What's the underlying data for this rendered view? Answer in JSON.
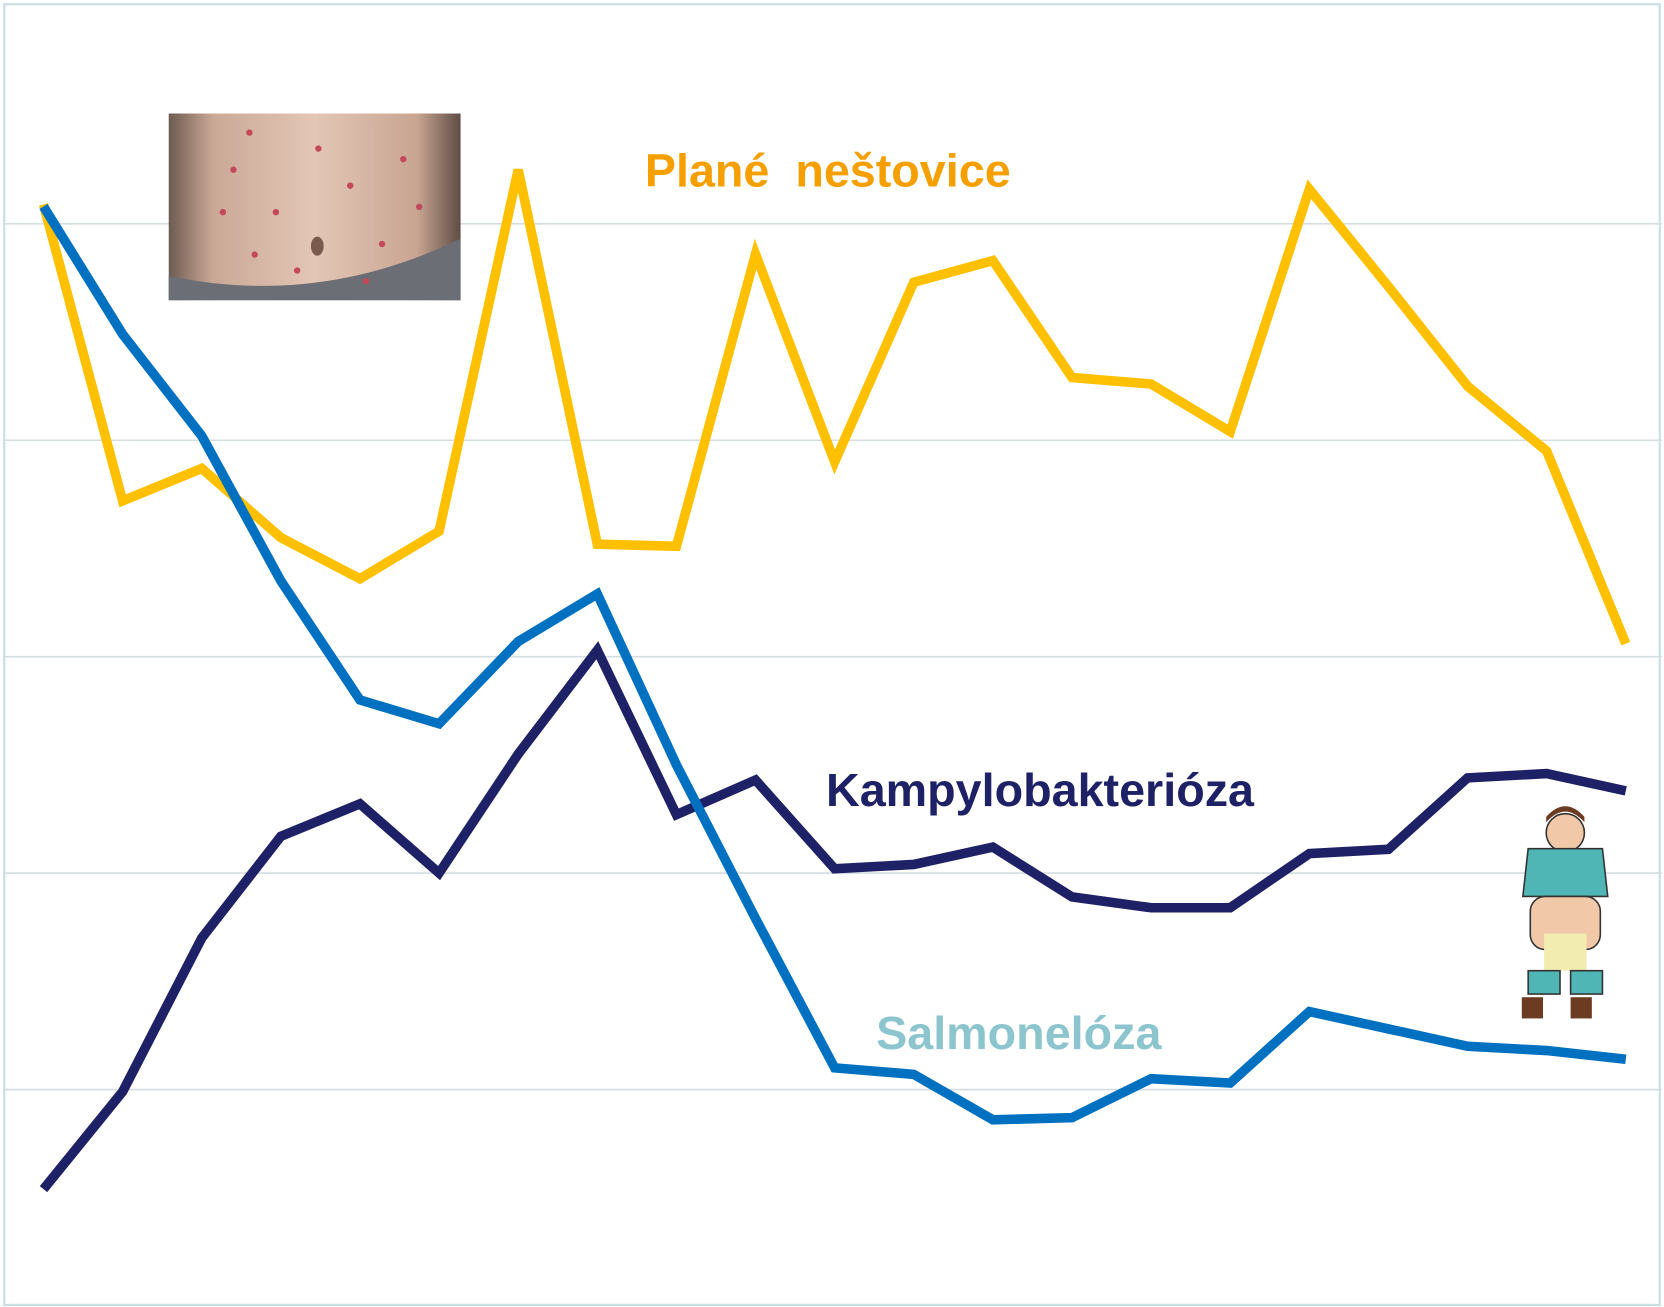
{
  "chart_data": {
    "type": "line",
    "categories": [
      null,
      null,
      null,
      null,
      null,
      null,
      null,
      null,
      null,
      null,
      null,
      null,
      null,
      null,
      null,
      null,
      null,
      null,
      null,
      null,
      null
    ],
    "series": [
      {
        "name": "Plané  neštovice",
        "color": "#ffc000",
        "label_color": "#f5a000",
        "values": [
          5.09,
          3.72,
          3.87,
          3.55,
          3.36,
          3.58,
          5.25,
          3.52,
          3.51,
          4.86,
          3.9,
          4.73,
          4.83,
          4.29,
          4.26,
          4.04,
          5.16,
          4.71,
          4.25,
          3.95,
          3.06
        ]
      },
      {
        "name": "Kampylobakterióza",
        "color": "#1f2166",
        "label_color": "#1f2166",
        "values": [
          0.54,
          0.99,
          1.7,
          2.17,
          2.32,
          2.0,
          2.55,
          3.03,
          2.27,
          2.43,
          2.02,
          2.04,
          2.12,
          1.89,
          1.84,
          1.84,
          2.09,
          2.11,
          2.44,
          2.46,
          2.38
        ]
      },
      {
        "name": "Salmonelóza",
        "color": "#0070c0",
        "label_color": "#8cc5cd",
        "values": [
          5.08,
          4.49,
          4.02,
          3.35,
          2.8,
          2.69,
          3.07,
          3.29,
          2.5,
          1.79,
          1.1,
          1.07,
          0.86,
          0.87,
          1.05,
          1.03,
          1.36,
          1.28,
          1.2,
          1.18,
          1.14
        ]
      }
    ],
    "ylim": [
      0,
      6
    ],
    "yticks": [
      1,
      2,
      3,
      4,
      5
    ],
    "grid": true
  }
}
